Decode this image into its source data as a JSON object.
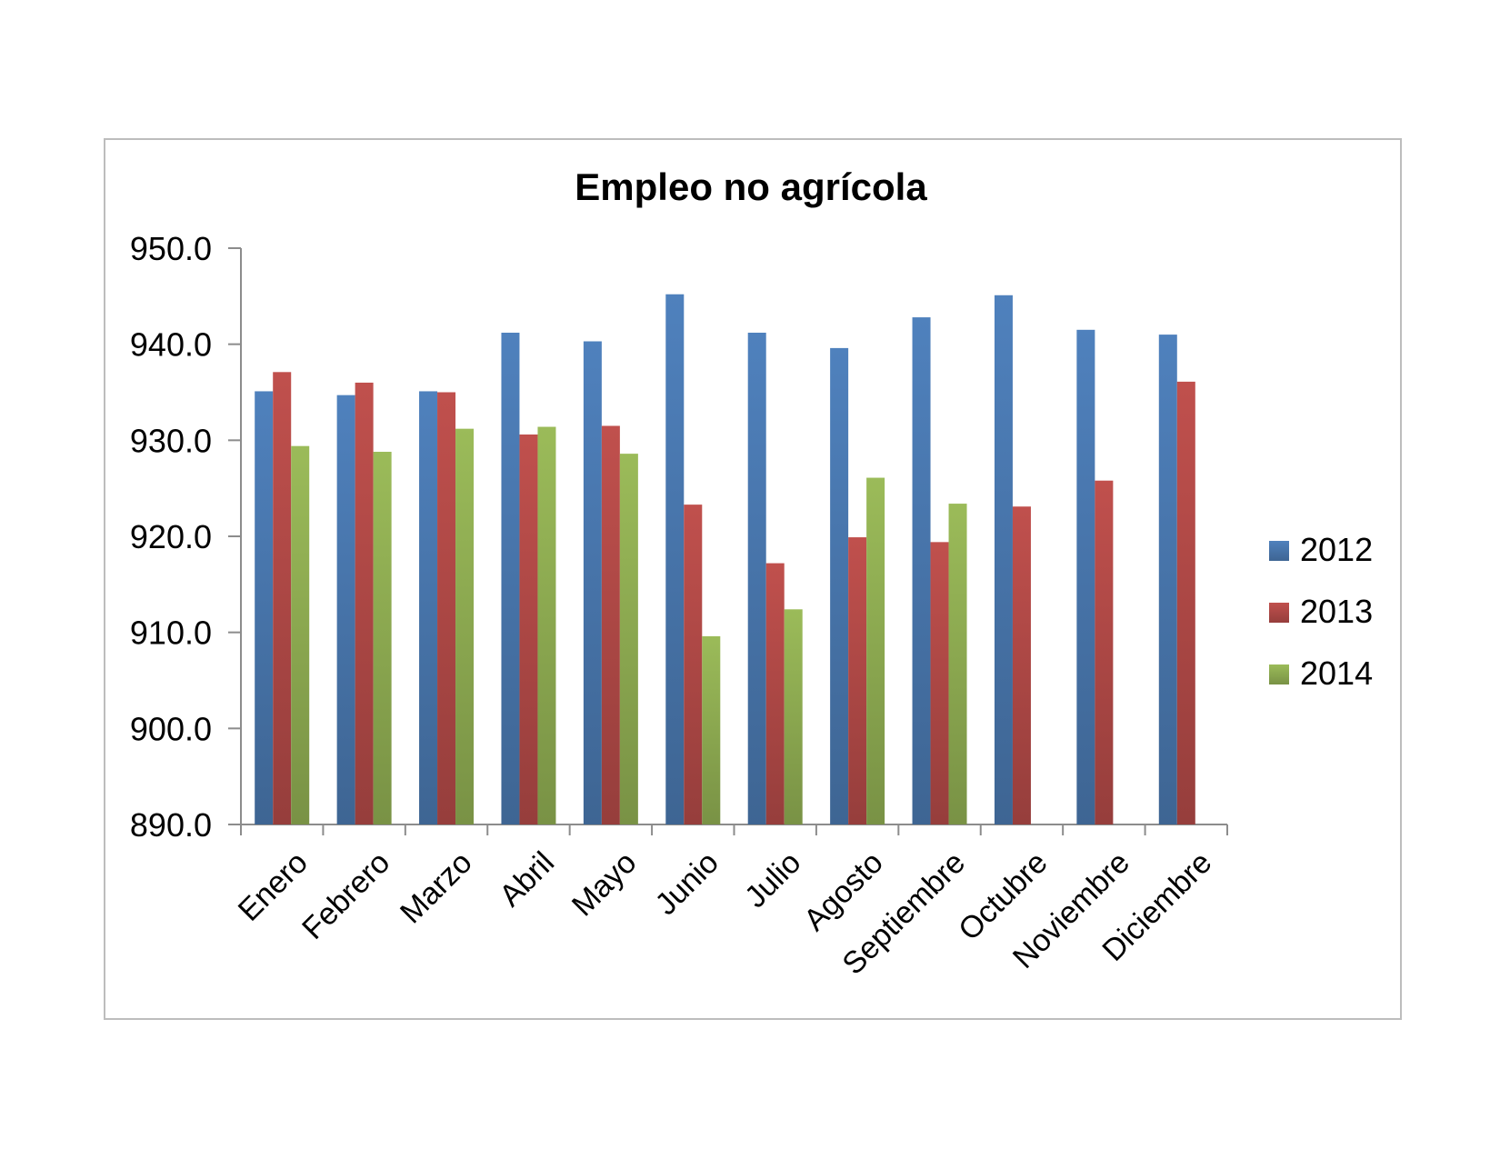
{
  "chart_data": {
    "type": "bar",
    "title": "Empleo no agrícola",
    "xlabel": "",
    "ylabel": "",
    "ylim": [
      890,
      950
    ],
    "y_ticks": [
      "890.0",
      "900.0",
      "910.0",
      "920.0",
      "930.0",
      "940.0",
      "950.0"
    ],
    "grid": false,
    "legend_position": "right",
    "categories": [
      "Enero",
      "Febrero",
      "Marzo",
      "Abril",
      "Mayo",
      "Junio",
      "Julio",
      "Agosto",
      "Septiembre",
      "Octubre",
      "Noviembre",
      "Diciembre"
    ],
    "series": [
      {
        "name": "2012",
        "color": "#4f81bd",
        "values": [
          935.1,
          934.7,
          935.1,
          941.2,
          940.3,
          945.2,
          941.2,
          939.6,
          942.8,
          945.1,
          941.5,
          941.0
        ]
      },
      {
        "name": "2013",
        "color": "#c0504d",
        "values": [
          937.1,
          936.0,
          935.0,
          930.6,
          931.5,
          923.3,
          917.2,
          919.9,
          919.4,
          923.1,
          925.8,
          936.1
        ]
      },
      {
        "name": "2014",
        "color": "#9bbb59",
        "values": [
          929.4,
          928.8,
          931.2,
          931.4,
          928.6,
          909.6,
          912.4,
          926.1,
          923.4,
          null,
          null,
          null
        ]
      }
    ]
  }
}
